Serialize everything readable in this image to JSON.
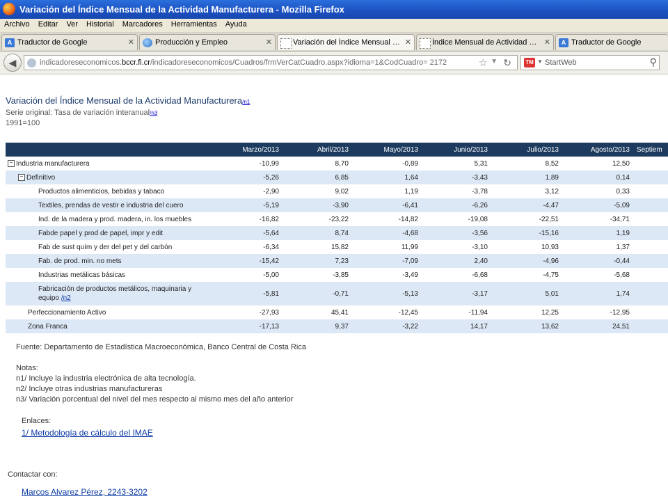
{
  "window": {
    "title": "Variación del Índice Mensual de la Actividad Manufacturera - Mozilla Firefox"
  },
  "menu": [
    "Archivo",
    "Editar",
    "Ver",
    "Historial",
    "Marcadores",
    "Herramientas",
    "Ayuda"
  ],
  "tabs": [
    {
      "label": "Traductor de Google",
      "icon": "translate-icon"
    },
    {
      "label": "Producción y Empleo",
      "icon": "globe-icon"
    },
    {
      "label": "Variación del Índice Mensual d...",
      "icon": "page-icon"
    },
    {
      "label": "Índice Mensual de Actividad C...",
      "icon": "page-icon"
    },
    {
      "label": "Traductor de Google",
      "icon": "translate-icon"
    }
  ],
  "nav": {
    "url_prefix": "indicadoreseconomicos.",
    "url_domain": "bccr.fi.cr",
    "url_suffix": "/indicadoreseconomicos/Cuadros/frmVerCatCuadro.aspx?idioma=1&CodCuadro= 2172",
    "search_placeholder": "StartWeb"
  },
  "page": {
    "title": "Variación del Índice Mensual de la Actividad Manufacturera",
    "title_ref": "/n1",
    "subtitle": "Serie original: Tasa de variación interanual",
    "subtitle_ref": "/n3",
    "base": "1991=100"
  },
  "table": {
    "columns": [
      "Marzo/2013",
      "Abril/2013",
      "Mayo/2013",
      "Junio/2013",
      "Julio/2013",
      "Agosto/2013",
      "Septiem"
    ],
    "rows": [
      {
        "label": "Industria manufacturera",
        "values": [
          "-10,99",
          "8,70",
          "-0,89",
          "5,31",
          "8,52",
          "12,50",
          ""
        ]
      },
      {
        "label": "Definitivo",
        "values": [
          "-5,26",
          "6,85",
          "1,64",
          "-3,43",
          "1,89",
          "0,14",
          ""
        ]
      },
      {
        "label": "Productos alimenticios, bebidas y tabaco",
        "values": [
          "-2,90",
          "9,02",
          "1,19",
          "-3,78",
          "3,12",
          "0,33",
          ""
        ]
      },
      {
        "label": "Textiles, prendas de vestir e industria del cuero",
        "values": [
          "-5,19",
          "-3,90",
          "-6,41",
          "-6,26",
          "-4,47",
          "-5,09",
          ""
        ]
      },
      {
        "label": "Ind. de la madera y prod. madera, in. los muebles",
        "values": [
          "-16,82",
          "-23,22",
          "-14,82",
          "-19,08",
          "-22,51",
          "-34,71",
          ""
        ]
      },
      {
        "label": "Fabde papel y prod de papel, impr y edit",
        "values": [
          "-5,64",
          "8,74",
          "-4,68",
          "-3,56",
          "-15,16",
          "1,19",
          ""
        ]
      },
      {
        "label": "Fab de sust quím y der del pet y del carbón",
        "values": [
          "-6,34",
          "15,82",
          "11,99",
          "-3,10",
          "10,93",
          "1,37",
          ""
        ]
      },
      {
        "label": "Fab. de prod. min. no mets",
        "values": [
          "-15,42",
          "7,23",
          "-7,09",
          "2,40",
          "-4,96",
          "-0,44",
          ""
        ]
      },
      {
        "label": "Industrias metálicas básicas",
        "values": [
          "-5,00",
          "-3,85",
          "-3,49",
          "-6,68",
          "-4,75",
          "-5,68",
          ""
        ]
      },
      {
        "label": "Fabricación de productos metálicos, maquinaria y equipo",
        "ref": "/n2",
        "values": [
          "-5,81",
          "-0,71",
          "-5,13",
          "-3,17",
          "5,01",
          "1,74",
          ""
        ]
      },
      {
        "label": "Perfeccionamiento Activo",
        "values": [
          "-27,93",
          "45,41",
          "-12,45",
          "-11,94",
          "12,25",
          "-12,95",
          ""
        ]
      },
      {
        "label": "Zona Franca",
        "values": [
          "-17,13",
          "9,37",
          "-3,22",
          "14,17",
          "13,62",
          "24,51",
          ""
        ]
      }
    ]
  },
  "footer": {
    "source": "Fuente: Departamento de Estadística Macroeconómica, Banco Central de Costa Rica",
    "notes_heading": "Notas:",
    "notes": [
      "n1/ Incluye la industria electrónica de alta tecnología.",
      "n2/ Incluye otras industrias manufactureras",
      "n3/ Variación porcentual del nivel del mes respecto al mismo mes del año anterior"
    ],
    "links_heading": "Enlaces:",
    "link_label": "1/ Metodología de cálculo del IMAE",
    "contact_heading": "Contactar con:",
    "contact_name": "Marcos Alvarez Pérez, 2243-3202"
  }
}
